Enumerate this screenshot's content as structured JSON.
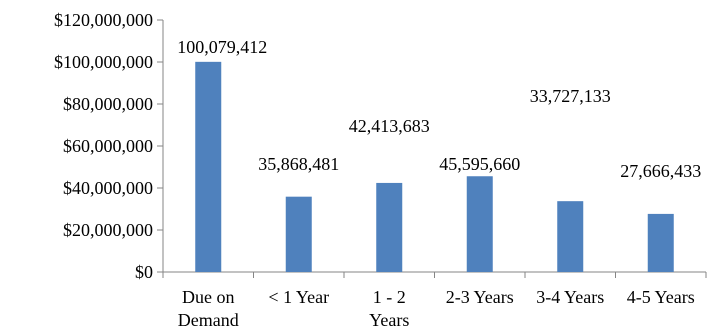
{
  "chart_data": {
    "type": "bar",
    "categories": [
      "Due on Demand",
      "< 1 Year",
      "1 - 2 Years",
      "2-3 Years",
      "3-4 Years",
      "4-5 Years"
    ],
    "category_label_lines": [
      [
        "Due on",
        "Demand"
      ],
      [
        "< 1 Year"
      ],
      [
        "1 - 2",
        "Years"
      ],
      [
        "2-3 Years"
      ],
      [
        "3-4 Years"
      ],
      [
        "4-5 Years"
      ]
    ],
    "values": [
      100079412,
      35868481,
      42413683,
      45595660,
      33727133,
      27666433
    ],
    "data_labels": [
      "100,079,412",
      "35,868,481",
      "42,413,683",
      "45,595,660",
      "33,727,133",
      "27,666,433"
    ],
    "y_tick_labels": [
      "$0",
      "$20,000,000",
      "$40,000,000",
      "$60,000,000",
      "$80,000,000",
      "$100,000,000",
      "$120,000,000"
    ],
    "y_ticks": [
      0,
      20000000,
      40000000,
      60000000,
      80000000,
      100000000,
      120000000
    ],
    "ylim": [
      0,
      120000000
    ],
    "grid": false,
    "bar_color": "#4F81BD",
    "axis_color": "#868686",
    "title": "",
    "xlabel": "",
    "ylabel": ""
  }
}
